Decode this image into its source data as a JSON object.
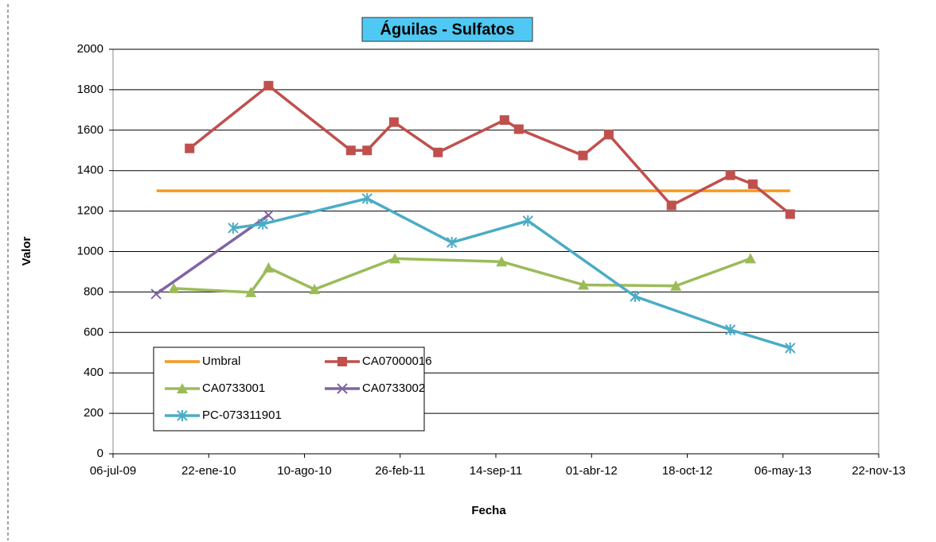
{
  "chart_data": {
    "type": "line",
    "title": "Águilas - Sulfatos",
    "x_label": "Fecha",
    "y_label": "Valor",
    "xlim": [
      "2009-07-06",
      "2013-11-22"
    ],
    "xticks": [
      {
        "value": "2009-07-06",
        "label": "06-jul-09"
      },
      {
        "value": "2010-01-22",
        "label": "22-ene-10"
      },
      {
        "value": "2010-08-10",
        "label": "10-ago-10"
      },
      {
        "value": "2011-02-26",
        "label": "26-feb-11"
      },
      {
        "value": "2011-09-14",
        "label": "14-sep-11"
      },
      {
        "value": "2012-04-01",
        "label": "01-abr-12"
      },
      {
        "value": "2012-10-18",
        "label": "18-oct-12"
      },
      {
        "value": "2013-05-06",
        "label": "06-may-13"
      },
      {
        "value": "2013-11-22",
        "label": "22-nov-13"
      }
    ],
    "ylim": [
      0,
      2000
    ],
    "yticks": [
      0,
      200,
      400,
      600,
      800,
      1000,
      1200,
      1400,
      1600,
      1800,
      2000
    ],
    "grid": true,
    "series": [
      {
        "name": "Umbral",
        "color": "#f59a1d",
        "marker": "none",
        "x": [
          "2009-10-05",
          "2013-05-21"
        ],
        "values": [
          1300,
          1300
        ]
      },
      {
        "name": "CA07000016",
        "color": "#c0504d",
        "marker": "square",
        "x": [
          "2009-12-13",
          "2010-05-27",
          "2010-11-15",
          "2010-12-19",
          "2011-02-13",
          "2011-05-16",
          "2011-10-02",
          "2011-11-01",
          "2012-03-14",
          "2012-05-07",
          "2012-09-15",
          "2013-01-16",
          "2013-03-04",
          "2013-05-21"
        ],
        "values": [
          1510,
          1820,
          1500,
          1500,
          1640,
          1490,
          1650,
          1605,
          1475,
          1578,
          1228,
          1377,
          1333,
          1185
        ]
      },
      {
        "name": "CA0733001",
        "color": "#9bbb59",
        "marker": "triangle",
        "x": [
          "2009-11-10",
          "2010-04-20",
          "2010-05-27",
          "2010-08-31",
          "2011-02-15",
          "2011-09-26",
          "2012-03-15",
          "2012-09-24",
          "2013-02-27"
        ],
        "values": [
          818,
          798,
          920,
          813,
          965,
          950,
          835,
          830,
          965
        ]
      },
      {
        "name": "CA0733002",
        "color": "#8064a2",
        "marker": "x",
        "x": [
          "2009-10-04",
          "2010-05-27"
        ],
        "values": [
          790,
          1180
        ]
      },
      {
        "name": "PC-073311901",
        "color": "#4bacc6",
        "marker": "star",
        "x": [
          "2010-03-14",
          "2010-05-15",
          "2010-12-19",
          "2011-06-14",
          "2011-11-20",
          "2012-07-01",
          "2013-01-16",
          "2013-05-21"
        ],
        "values": [
          1116,
          1136,
          1262,
          1045,
          1152,
          778,
          613,
          523
        ]
      }
    ]
  }
}
